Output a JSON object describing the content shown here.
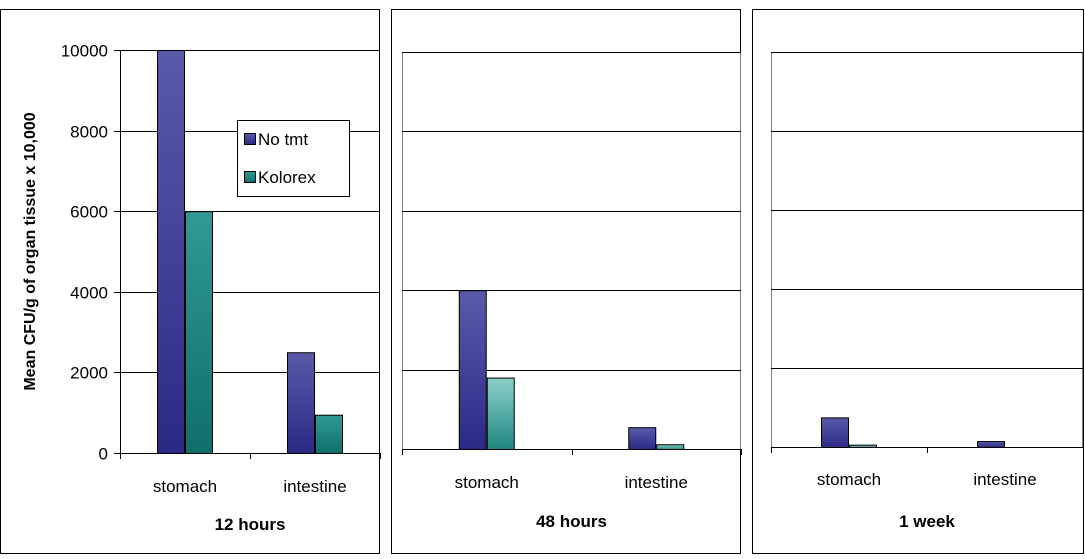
{
  "chart_data": [
    {
      "type": "bar",
      "title": "12 hours",
      "ylabel": "Mean CFU/g of organ tissue x 10,000",
      "categories": [
        "stomach",
        "intestine"
      ],
      "series": [
        {
          "name": "No tmt",
          "values": [
            10000,
            2500
          ]
        },
        {
          "name": "Kolorex",
          "values": [
            6000,
            950
          ]
        }
      ],
      "ylim": [
        0,
        10000
      ],
      "yticks": [
        "0",
        "2000",
        "4000",
        "6000",
        "8000",
        "10000"
      ],
      "grid": true,
      "legend": "top-right"
    },
    {
      "type": "bar",
      "title": "48 hours",
      "categories": [
        "stomach",
        "intestine"
      ],
      "series": [
        {
          "name": "No tmt",
          "values": [
            4000,
            550
          ]
        },
        {
          "name": "Kolorex",
          "values": [
            1800,
            120
          ]
        }
      ],
      "ylim": [
        0,
        10000
      ],
      "grid": true
    },
    {
      "type": "bar",
      "title": "1 week",
      "categories": [
        "stomach",
        "intestine"
      ],
      "series": [
        {
          "name": "No tmt",
          "values": [
            750,
            150
          ]
        },
        {
          "name": "Kolorex",
          "values": [
            60,
            0
          ]
        }
      ],
      "ylim": [
        0,
        10000
      ],
      "grid": true
    }
  ],
  "colors": {
    "no_tmt": "#5a5aaa",
    "no_tmt_dark": "#2a2a86",
    "kolorex_12h": "#2f9a94",
    "kolorex_12h_dark": "#0f6f6a",
    "kolorex_light": "#8ccfc9",
    "kolorex_light_dark": "#1f8880",
    "grid": "#000000",
    "plot_border": "#808080"
  }
}
